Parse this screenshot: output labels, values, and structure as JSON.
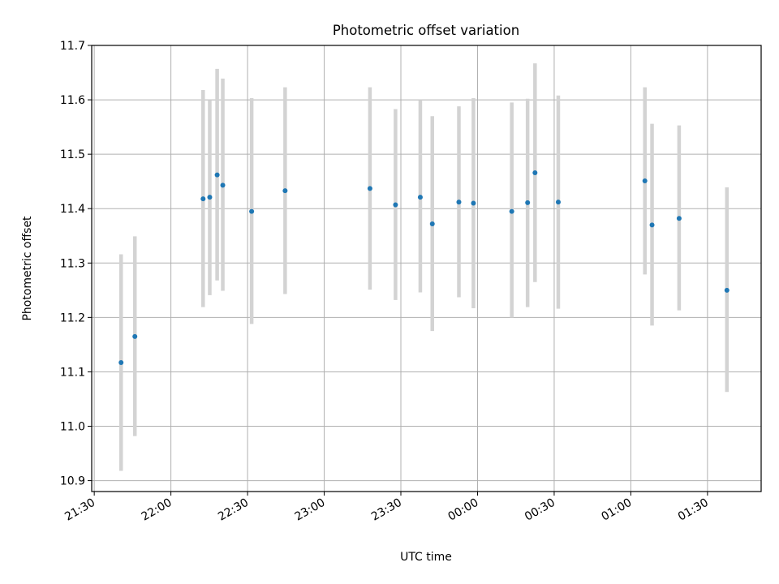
{
  "chart_data": {
    "type": "scatter",
    "title": "Photometric offset variation",
    "xlabel": "UTC time",
    "ylabel": "Photometric offset",
    "x_unit": "minutes since 21:30 UTC (axis spans midnight)",
    "xlim": [
      -1,
      261
    ],
    "ylim": [
      10.88,
      11.7
    ],
    "x_ticks": [
      {
        "value": 0,
        "label": "21:30"
      },
      {
        "value": 30,
        "label": "22:00"
      },
      {
        "value": 60,
        "label": "22:30"
      },
      {
        "value": 90,
        "label": "23:00"
      },
      {
        "value": 120,
        "label": "23:30"
      },
      {
        "value": 150,
        "label": "00:00"
      },
      {
        "value": 180,
        "label": "00:30"
      },
      {
        "value": 210,
        "label": "01:00"
      },
      {
        "value": 240,
        "label": "01:30"
      }
    ],
    "y_ticks": [
      {
        "value": 10.9,
        "label": "10.9"
      },
      {
        "value": 11.0,
        "label": "11.0"
      },
      {
        "value": 11.1,
        "label": "11.1"
      },
      {
        "value": 11.2,
        "label": "11.2"
      },
      {
        "value": 11.3,
        "label": "11.3"
      },
      {
        "value": 11.4,
        "label": "11.4"
      },
      {
        "value": 11.5,
        "label": "11.5"
      },
      {
        "value": 11.6,
        "label": "11.6"
      },
      {
        "value": 11.7,
        "label": "11.7"
      }
    ],
    "grid": true,
    "legend": "none",
    "colors": {
      "point": "#1f77b4",
      "errorbar": "#d3d3d3",
      "grid": "#b0b0b0"
    },
    "points": [
      {
        "x": 10.5,
        "y": 11.117,
        "ylow": 10.918,
        "yhigh": 11.316
      },
      {
        "x": 15.9,
        "y": 11.165,
        "ylow": 10.982,
        "yhigh": 11.349
      },
      {
        "x": 42.6,
        "y": 11.418,
        "ylow": 11.219,
        "yhigh": 11.618
      },
      {
        "x": 45.2,
        "y": 11.421,
        "ylow": 11.241,
        "yhigh": 11.6
      },
      {
        "x": 48.1,
        "y": 11.462,
        "ylow": 11.268,
        "yhigh": 11.657
      },
      {
        "x": 50.3,
        "y": 11.443,
        "ylow": 11.249,
        "yhigh": 11.639
      },
      {
        "x": 61.6,
        "y": 11.395,
        "ylow": 11.188,
        "yhigh": 11.603
      },
      {
        "x": 74.7,
        "y": 11.433,
        "ylow": 11.243,
        "yhigh": 11.623
      },
      {
        "x": 107.9,
        "y": 11.437,
        "ylow": 11.251,
        "yhigh": 11.623
      },
      {
        "x": 117.9,
        "y": 11.407,
        "ylow": 11.232,
        "yhigh": 11.583
      },
      {
        "x": 127.6,
        "y": 11.421,
        "ylow": 11.246,
        "yhigh": 11.6
      },
      {
        "x": 132.3,
        "y": 11.372,
        "ylow": 11.175,
        "yhigh": 11.57
      },
      {
        "x": 142.7,
        "y": 11.412,
        "ylow": 11.237,
        "yhigh": 11.588
      },
      {
        "x": 148.4,
        "y": 11.41,
        "ylow": 11.217,
        "yhigh": 11.603
      },
      {
        "x": 163.4,
        "y": 11.395,
        "ylow": 11.2,
        "yhigh": 11.595
      },
      {
        "x": 169.6,
        "y": 11.411,
        "ylow": 11.219,
        "yhigh": 11.602
      },
      {
        "x": 172.5,
        "y": 11.466,
        "ylow": 11.265,
        "yhigh": 11.667
      },
      {
        "x": 181.6,
        "y": 11.412,
        "ylow": 11.216,
        "yhigh": 11.608
      },
      {
        "x": 215.5,
        "y": 11.451,
        "ylow": 11.279,
        "yhigh": 11.623
      },
      {
        "x": 218.3,
        "y": 11.37,
        "ylow": 11.185,
        "yhigh": 11.556
      },
      {
        "x": 228.9,
        "y": 11.382,
        "ylow": 11.213,
        "yhigh": 11.553
      },
      {
        "x": 247.6,
        "y": 11.25,
        "ylow": 11.063,
        "yhigh": 11.439
      }
    ]
  }
}
